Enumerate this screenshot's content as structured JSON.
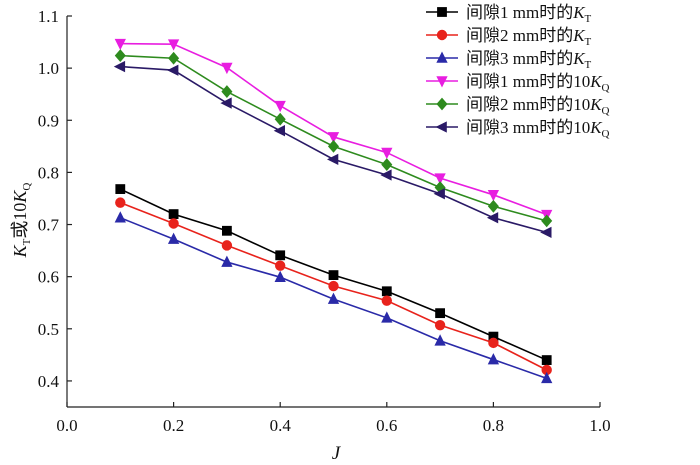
{
  "chart_data": {
    "type": "line",
    "title": "",
    "xlabel": "J",
    "ylabel": {
      "parts": [
        {
          "text": "K",
          "style": "italic"
        },
        {
          "text": "T",
          "style": "sub"
        },
        {
          "text": "或10",
          "style": "normal"
        },
        {
          "text": "K",
          "style": "italic"
        },
        {
          "text": "Q",
          "style": "sub"
        }
      ]
    },
    "xlim": [
      0.0,
      1.0
    ],
    "ylim": [
      0.35,
      1.1
    ],
    "xticks": [
      "0.0",
      "0.2",
      "0.4",
      "0.6",
      "0.8",
      "1.0"
    ],
    "yticks": [
      "0.4",
      "0.5",
      "0.6",
      "0.7",
      "0.8",
      "0.9",
      "1.0",
      "1.1"
    ],
    "grid": false,
    "legend_position": "top-right",
    "x": [
      0.1,
      0.2,
      0.3,
      0.4,
      0.5,
      0.6,
      0.7,
      0.8,
      0.9
    ],
    "series": [
      {
        "name": "间隙1 mm时的K_T",
        "label_parts": [
          {
            "text": "间隙1 mm时的",
            "style": "normal"
          },
          {
            "text": "K",
            "style": "italic"
          },
          {
            "text": "T",
            "style": "sub"
          }
        ],
        "color": "#000000",
        "marker": "square",
        "values": [
          0.768,
          0.72,
          0.688,
          0.641,
          0.603,
          0.572,
          0.53,
          0.485,
          0.44
        ]
      },
      {
        "name": "间隙2 mm时的K_T",
        "label_parts": [
          {
            "text": "间隙2 mm时的",
            "style": "normal"
          },
          {
            "text": "K",
            "style": "italic"
          },
          {
            "text": "T",
            "style": "sub"
          }
        ],
        "color": "#e8231c",
        "marker": "circle",
        "values": [
          0.742,
          0.702,
          0.66,
          0.621,
          0.582,
          0.554,
          0.507,
          0.473,
          0.421
        ]
      },
      {
        "name": "间隙3 mm时的K_T",
        "label_parts": [
          {
            "text": "间隙3 mm时的",
            "style": "normal"
          },
          {
            "text": "K",
            "style": "italic"
          },
          {
            "text": "T",
            "style": "sub"
          }
        ],
        "color": "#2a2aa8",
        "marker": "triangle-up",
        "values": [
          0.713,
          0.672,
          0.628,
          0.599,
          0.557,
          0.521,
          0.477,
          0.441,
          0.405
        ]
      },
      {
        "name": "间隙1 mm时的10K_Q",
        "label_parts": [
          {
            "text": "间隙1 mm时的10",
            "style": "normal"
          },
          {
            "text": "K",
            "style": "italic"
          },
          {
            "text": "Q",
            "style": "sub"
          }
        ],
        "color": "#e81ee0",
        "marker": "triangle-down",
        "values": [
          1.047,
          1.046,
          1.001,
          0.928,
          0.868,
          0.838,
          0.789,
          0.757,
          0.719
        ]
      },
      {
        "name": "间隙2 mm时的10K_Q",
        "label_parts": [
          {
            "text": "间隙2 mm时的10",
            "style": "normal"
          },
          {
            "text": "K",
            "style": "italic"
          },
          {
            "text": "Q",
            "style": "sub"
          }
        ],
        "color": "#2e8b1e",
        "marker": "diamond",
        "values": [
          1.024,
          1.019,
          0.955,
          0.902,
          0.85,
          0.815,
          0.771,
          0.735,
          0.707
        ]
      },
      {
        "name": "间隙3 mm时的10K_Q",
        "label_parts": [
          {
            "text": "间隙3 mm时的10",
            "style": "normal"
          },
          {
            "text": "K",
            "style": "italic"
          },
          {
            "text": "Q",
            "style": "sub"
          }
        ],
        "color": "#2a1a66",
        "marker": "triangle-left",
        "values": [
          1.003,
          0.996,
          0.933,
          0.88,
          0.825,
          0.795,
          0.759,
          0.713,
          0.685
        ]
      }
    ]
  }
}
